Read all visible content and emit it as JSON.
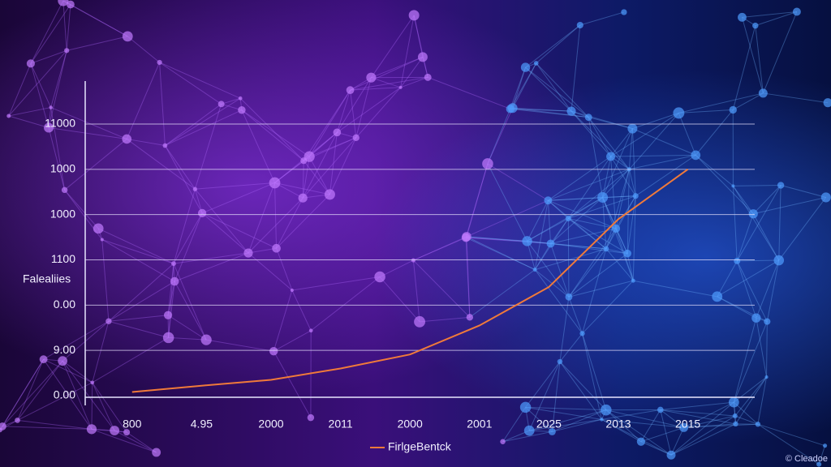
{
  "chart_data": {
    "type": "line",
    "y_axis_label": "Falealiies",
    "categories": [
      "800",
      "4.95",
      "2000",
      "2011",
      "2000",
      "2001",
      "2025",
      "2013",
      "2015"
    ],
    "series": [
      {
        "name": "FirlgeBentck",
        "color": "#f07a3a",
        "values": [
          0.08,
          0.22,
          0.35,
          0.6,
          0.91,
          1.55,
          2.4,
          3.9,
          5.0
        ]
      }
    ],
    "ylim": [
      0,
      6
    ],
    "yticks": [
      {
        "value": 0,
        "label": "0.00"
      },
      {
        "value": 1,
        "label": "9.00"
      },
      {
        "value": 2,
        "label": "0.00"
      },
      {
        "value": 3,
        "label": "1100"
      },
      {
        "value": 4,
        "label": "1000"
      },
      {
        "value": 5,
        "label": "1000"
      },
      {
        "value": 6,
        "label": "11000"
      }
    ],
    "grid": true,
    "legend": "bottom",
    "watermark": "© Cleadoe"
  }
}
